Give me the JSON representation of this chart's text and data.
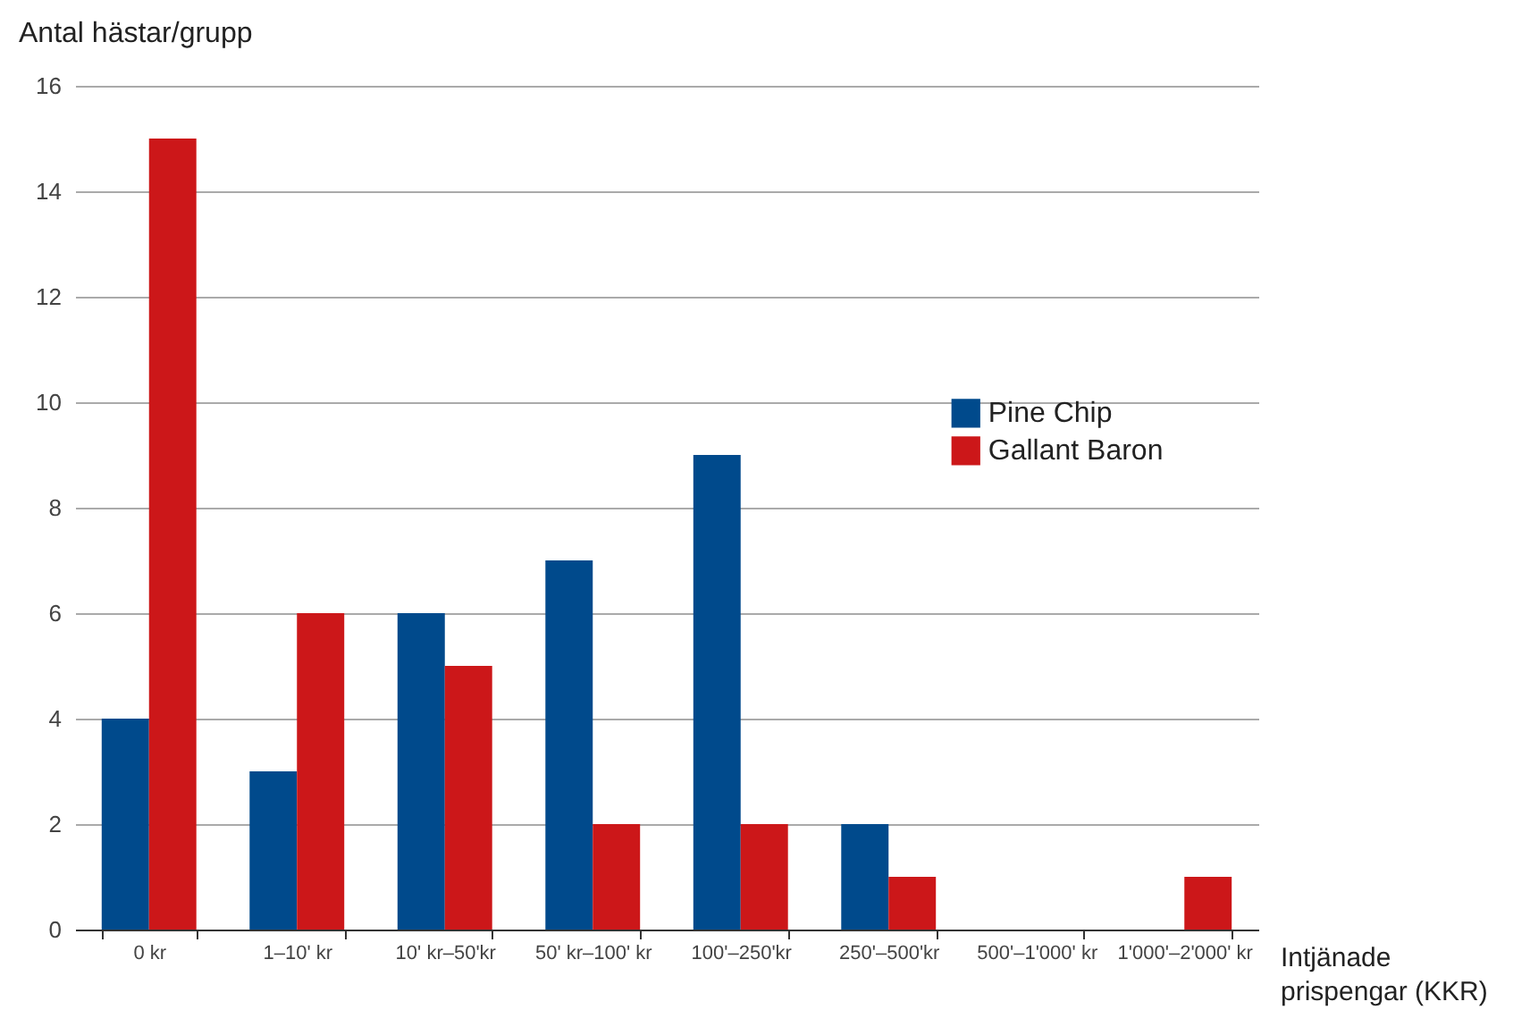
{
  "chart_data": {
    "type": "bar",
    "xlabel": "Intjänade prispengar (KKR)",
    "ylabel": "Antal hästar/grupp",
    "categories": [
      "0 kr",
      "1–10' kr",
      "10' kr–50'kr",
      "50' kr–100' kr",
      "100'–250'kr",
      "250'–500'kr",
      "500'–1'000' kr",
      "1'000'–2'000' kr"
    ],
    "series": [
      {
        "name": "Pine Chip",
        "color": "#004a8c",
        "values": [
          4,
          3,
          6,
          7,
          9,
          2,
          0,
          0
        ]
      },
      {
        "name": "Gallant Baron",
        "color": "#cc1719",
        "values": [
          15,
          6,
          5,
          2,
          2,
          1,
          0,
          1
        ]
      }
    ],
    "ylim": [
      0,
      16
    ],
    "yticks": [
      0,
      2,
      4,
      6,
      8,
      10,
      12,
      14,
      16
    ],
    "grid": "y",
    "legend": "right"
  }
}
